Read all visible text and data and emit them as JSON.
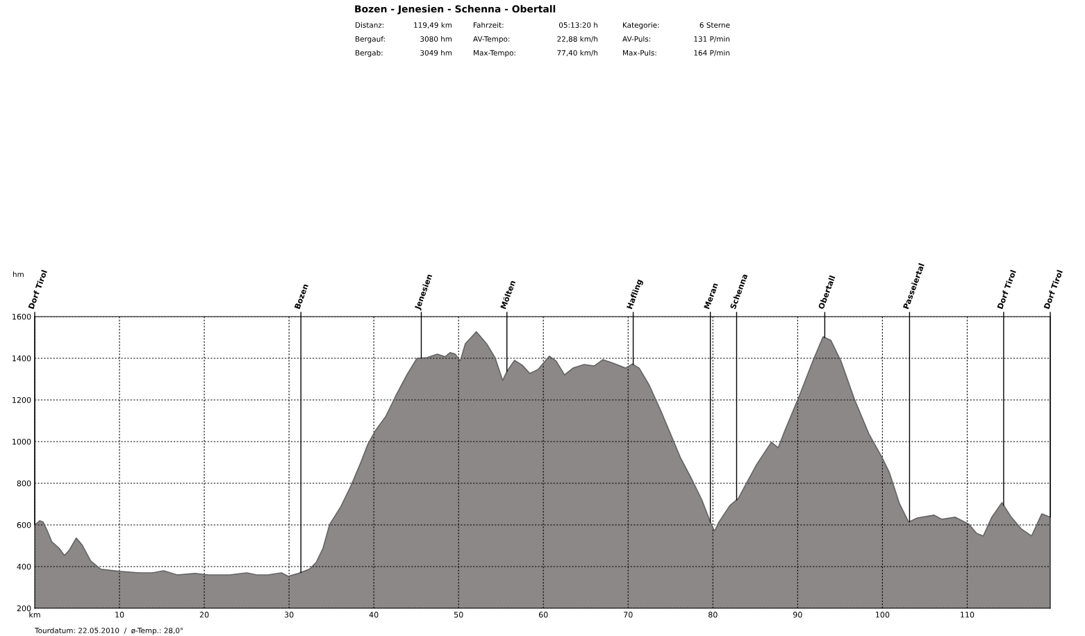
{
  "chart_data": {
    "type": "area",
    "title": "Bozen - Jenesien - Schenna - Obertall",
    "x": [
      0,
      0.6,
      1.0,
      1.5,
      2.0,
      2.9,
      3.5,
      4.1,
      4.9,
      5.6,
      6.6,
      7.8,
      10,
      12.3,
      13.9,
      15.2,
      16.8,
      18.9,
      20.5,
      23.0,
      25.0,
      26.2,
      27.5,
      29.1,
      29.9,
      31.1,
      32.4,
      33.2,
      34.0,
      34.8,
      36.1,
      37.3,
      38.5,
      39.3,
      40.2,
      41.4,
      42.6,
      43.9,
      45.1,
      46.3,
      47.5,
      48.4,
      49.0,
      49.6,
      50.2,
      50.8,
      52.1,
      53.3,
      54.3,
      55.2,
      55.7,
      56.6,
      57.5,
      58.4,
      59.4,
      60.7,
      61.5,
      62.5,
      63.5,
      64.8,
      66.0,
      67.0,
      68.0,
      69.7,
      70.5,
      71.3,
      72.5,
      73.8,
      75.0,
      76.2,
      77.5,
      78.7,
      79.7,
      80.2,
      80.7,
      82.0,
      83.0,
      84.0,
      85.2,
      86.9,
      87.7,
      88.5,
      90.2,
      91.8,
      93.0,
      93.9,
      95.1,
      96.7,
      98.4,
      100.0,
      100.8,
      102.0,
      103.1,
      104.1,
      106.1,
      107.0,
      108.6,
      110.2,
      111.1,
      111.9,
      112.9,
      114.1,
      115.2,
      116.4,
      117.6,
      118.8,
      119.8
    ],
    "series": [
      {
        "color": "#8c8888",
        "values": [
          600,
          620,
          613,
          570,
          520,
          487,
          453,
          480,
          537,
          503,
          427,
          387,
          377,
          370,
          370,
          380,
          360,
          367,
          360,
          360,
          370,
          360,
          360,
          370,
          353,
          367,
          387,
          420,
          487,
          603,
          687,
          787,
          903,
          987,
          1053,
          1120,
          1220,
          1320,
          1400,
          1403,
          1420,
          1407,
          1427,
          1420,
          1387,
          1470,
          1527,
          1470,
          1403,
          1293,
          1337,
          1390,
          1367,
          1327,
          1347,
          1410,
          1387,
          1320,
          1353,
          1370,
          1363,
          1393,
          1380,
          1353,
          1373,
          1353,
          1270,
          1153,
          1037,
          920,
          820,
          720,
          613,
          570,
          613,
          693,
          727,
          803,
          893,
          997,
          970,
          1053,
          1220,
          1387,
          1503,
          1487,
          1387,
          1203,
          1037,
          920,
          853,
          703,
          613,
          633,
          647,
          627,
          637,
          603,
          560,
          547,
          637,
          707,
          637,
          580,
          547,
          653,
          637
        ]
      }
    ],
    "xlim": [
      0,
      119.8
    ],
    "xticks": [
      {
        "value": 0,
        "label": "km"
      },
      10,
      20,
      30,
      40,
      50,
      60,
      70,
      80,
      90,
      100,
      110
    ],
    "ylim": [
      200,
      1600
    ],
    "yticks": [
      200,
      400,
      600,
      800,
      1000,
      1200,
      1400,
      1600
    ],
    "grid": true,
    "line_style": "solid",
    "ref_lines": [
      {
        "axis": "x",
        "value": 0,
        "label": "Dorf Tirol",
        "color": "#000000"
      },
      {
        "axis": "x",
        "value": 31.4,
        "label": "Bozen",
        "color": "#000000"
      },
      {
        "axis": "x",
        "value": 45.6,
        "label": "Jenesien",
        "color": "#000000"
      },
      {
        "axis": "x",
        "value": 55.7,
        "label": "Mölten",
        "color": "#000000"
      },
      {
        "axis": "x",
        "value": 70.6,
        "label": "Hafling",
        "color": "#000000"
      },
      {
        "axis": "x",
        "value": 79.7,
        "label": "Meran",
        "color": "#000000"
      },
      {
        "axis": "x",
        "value": 82.8,
        "label": "Schenna",
        "color": "#000000"
      },
      {
        "axis": "x",
        "value": 93.2,
        "label": "Obertall",
        "color": "#000000"
      },
      {
        "axis": "x",
        "value": 103.2,
        "label": "Passeiertal",
        "color": "#000000"
      },
      {
        "axis": "x",
        "value": 114.3,
        "label": "Dorf Tirol",
        "color": "#000000"
      },
      {
        "axis": "x",
        "value": 119.8,
        "label": "Dorf Tirol",
        "color": "#000000"
      }
    ],
    "annotations": [
      "Distanz:",
      "119,49 km",
      "Fahrzeit:",
      "05:13:20 h",
      "Kategorie:",
      "6 Sterne",
      "Bergauf:",
      "3080 hm",
      "AV-Tempo:",
      "22,88 km/h",
      "AV-Puls:",
      "131 P/min",
      "Bergab:",
      "3049 hm",
      "Max-Tempo:",
      "77,40 km/h",
      "Max-Puls:",
      "164 P/min",
      "Tourdatum: 22.05.2010  /  ø-Temp.: 28,0°",
      "hm"
    ]
  }
}
